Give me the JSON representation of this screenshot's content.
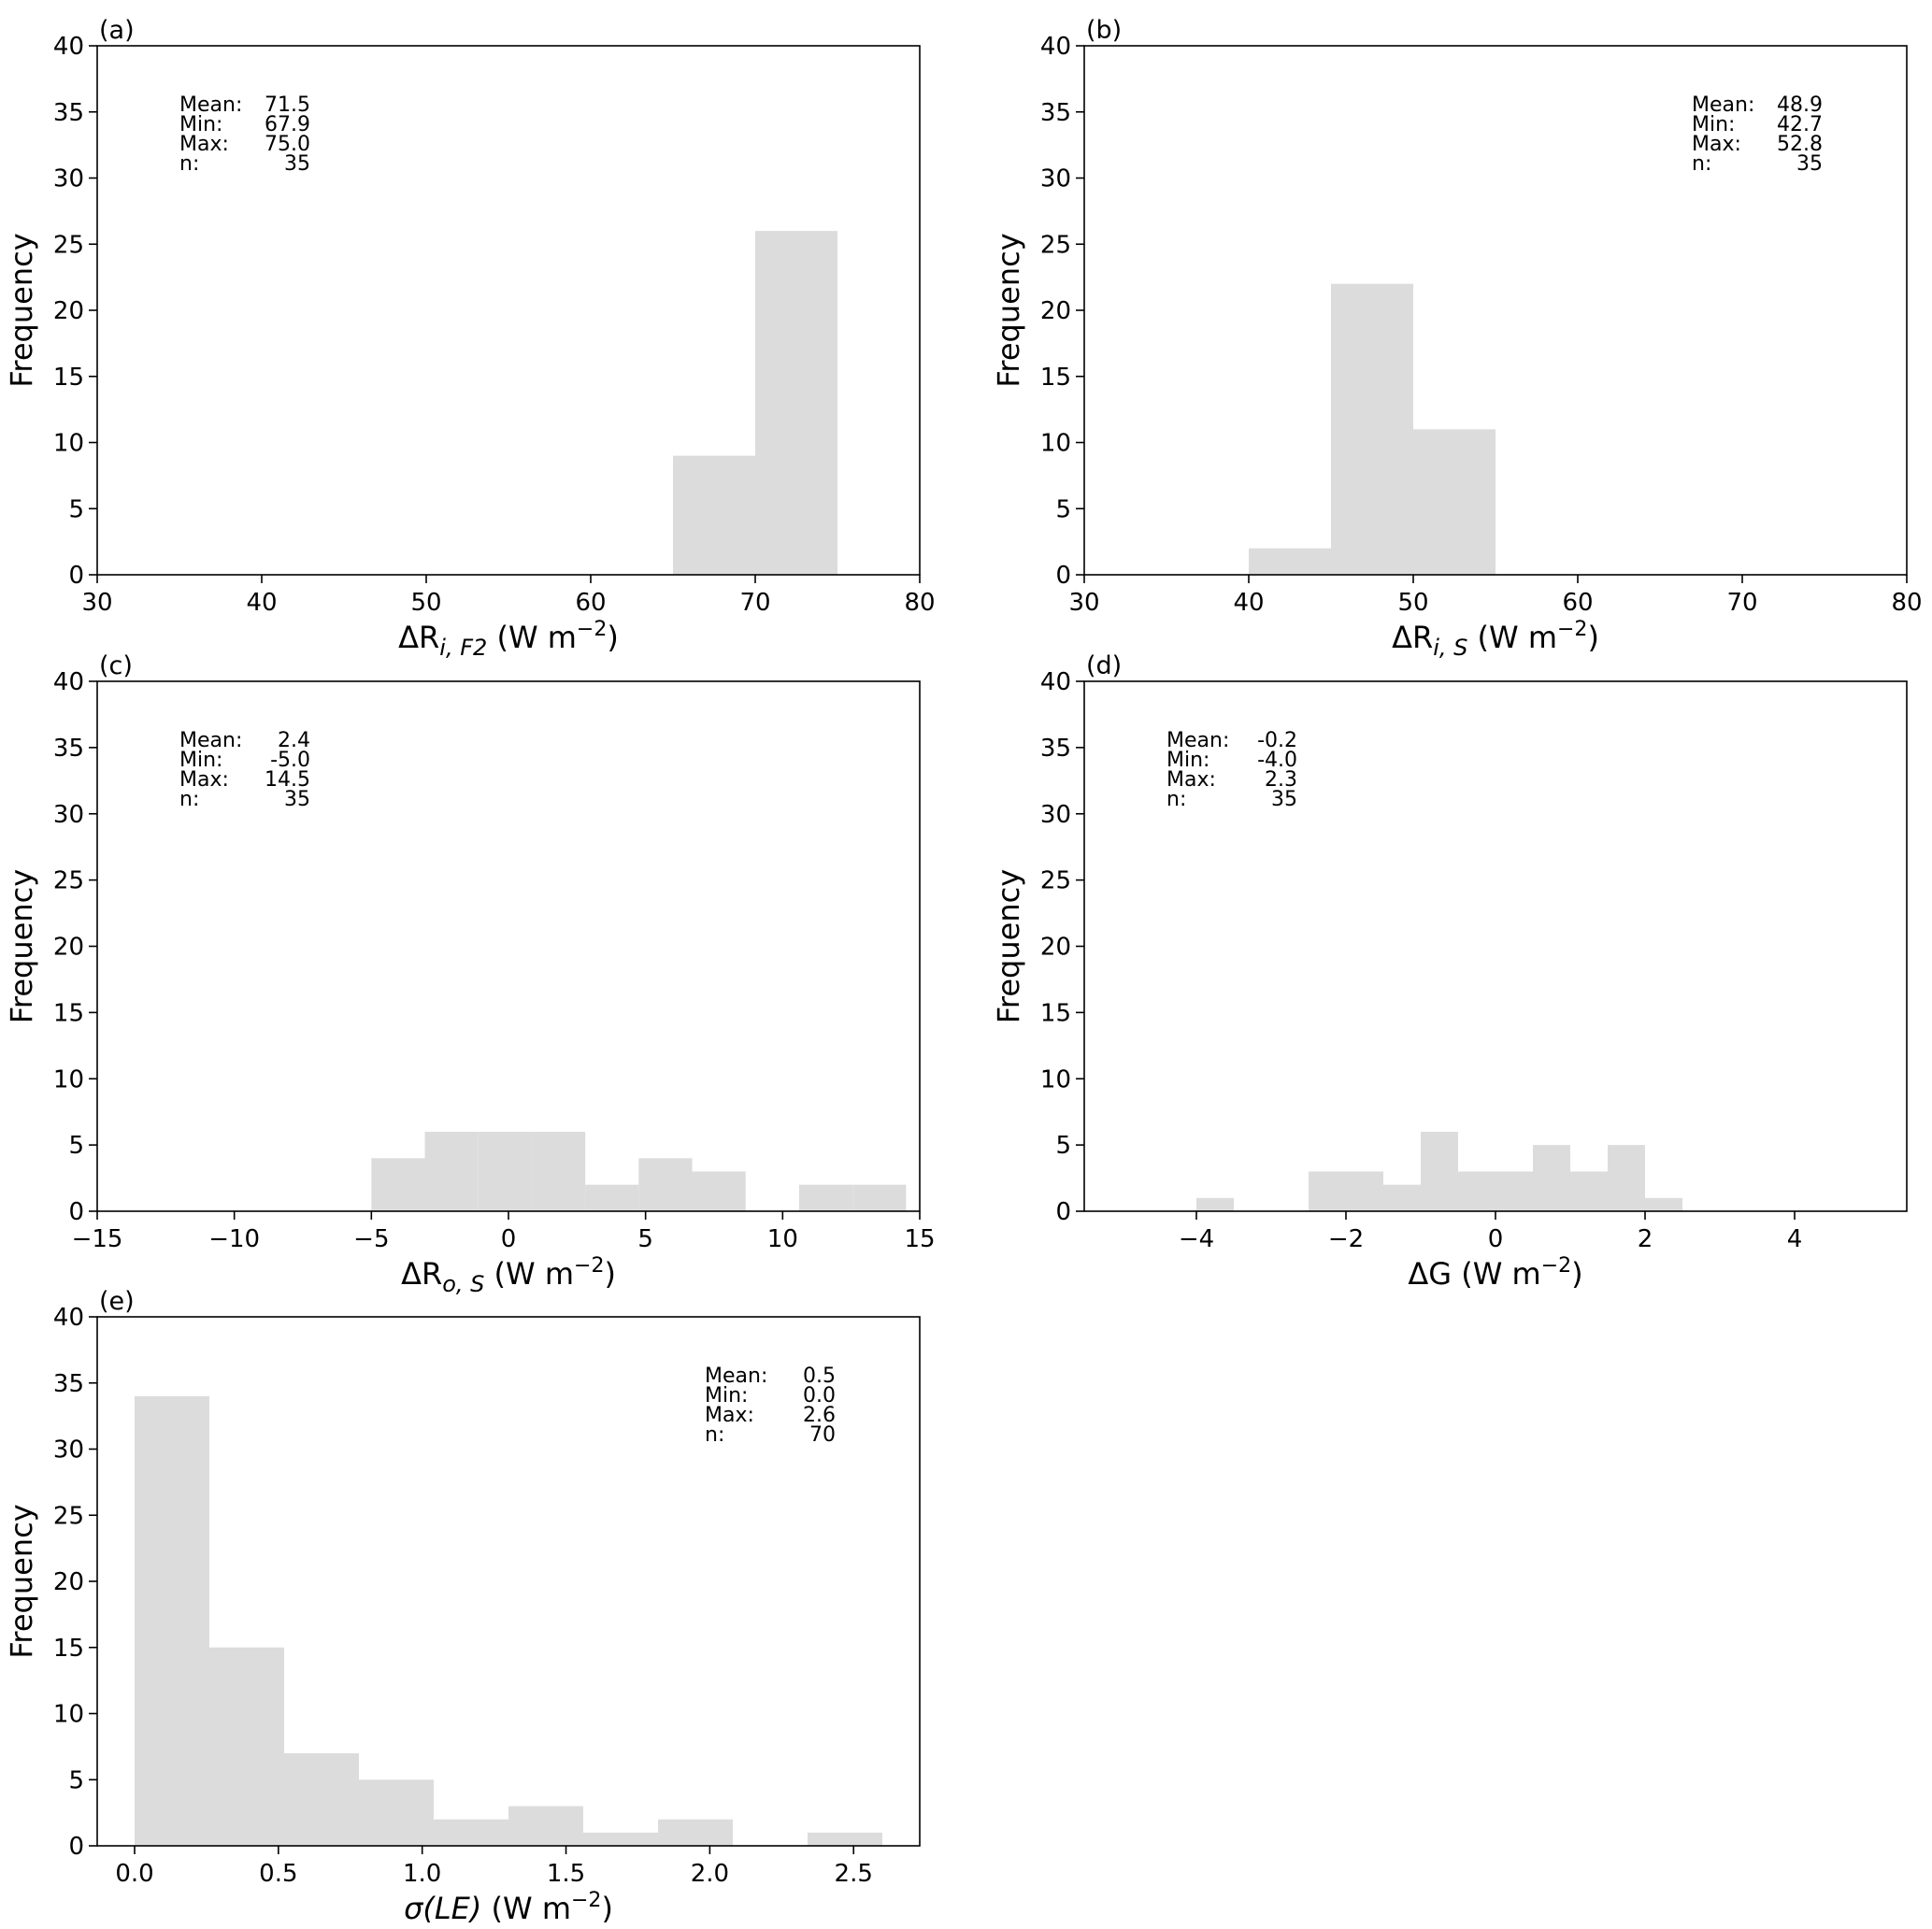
{
  "chart_data": [
    {
      "type": "bar",
      "panel_label": "(a)",
      "xlabel": {
        "prefix": "ΔR",
        "sub": "i, F2",
        "unit": " (W m",
        "sup": "−2",
        "close": ")"
      },
      "ylabel": "Frequency",
      "xlim": [
        30,
        80
      ],
      "ylim": [
        0,
        40
      ],
      "xticks": [
        30,
        40,
        50,
        60,
        70,
        80
      ],
      "xtick_labels": [
        "30",
        "40",
        "50",
        "60",
        "70",
        "80"
      ],
      "yticks": [
        0,
        5,
        10,
        15,
        20,
        25,
        30,
        35,
        40
      ],
      "ytick_labels": [
        "0",
        "5",
        "10",
        "15",
        "20",
        "25",
        "30",
        "35",
        "40"
      ],
      "bins": [
        [
          65,
          70,
          9
        ],
        [
          70,
          75,
          26
        ]
      ],
      "stats_position": "top-left",
      "stats": [
        [
          "Mean:",
          "71.5"
        ],
        [
          "Min:",
          "67.9"
        ],
        [
          "Max:",
          "75.0"
        ],
        [
          "n:",
          "35"
        ]
      ]
    },
    {
      "type": "bar",
      "panel_label": "(b)",
      "xlabel": {
        "prefix": "ΔR",
        "sub": "i, S",
        "unit": " (W m",
        "sup": "−2",
        "close": ")"
      },
      "ylabel": "Frequency",
      "xlim": [
        30,
        80
      ],
      "ylim": [
        0,
        40
      ],
      "xticks": [
        30,
        40,
        50,
        60,
        70,
        80
      ],
      "xtick_labels": [
        "30",
        "40",
        "50",
        "60",
        "70",
        "80"
      ],
      "yticks": [
        0,
        5,
        10,
        15,
        20,
        25,
        30,
        35,
        40
      ],
      "ytick_labels": [
        "0",
        "5",
        "10",
        "15",
        "20",
        "25",
        "30",
        "35",
        "40"
      ],
      "bins": [
        [
          40,
          45,
          2
        ],
        [
          45,
          50,
          22
        ],
        [
          50,
          55,
          11
        ]
      ],
      "stats_position": "top-right",
      "stats": [
        [
          "Mean:",
          "48.9"
        ],
        [
          "Min:",
          "42.7"
        ],
        [
          "Max:",
          "52.8"
        ],
        [
          "n:",
          "35"
        ]
      ]
    },
    {
      "type": "bar",
      "panel_label": "(c)",
      "xlabel": {
        "prefix": "ΔR",
        "sub": "o, S",
        "unit": " (W m",
        "sup": "−2",
        "close": ")"
      },
      "ylabel": "Frequency",
      "xlim": [
        -15,
        15
      ],
      "ylim": [
        0,
        40
      ],
      "xticks": [
        -15,
        -10,
        -5,
        0,
        5,
        10,
        15
      ],
      "xtick_labels": [
        "−15",
        "−10",
        "−5",
        "0",
        "5",
        "10",
        "15"
      ],
      "yticks": [
        0,
        5,
        10,
        15,
        20,
        25,
        30,
        35,
        40
      ],
      "ytick_labels": [
        "0",
        "5",
        "10",
        "15",
        "20",
        "25",
        "30",
        "35",
        "40"
      ],
      "bins": [
        [
          -5.0,
          -3.05,
          4
        ],
        [
          -3.05,
          -1.1,
          6
        ],
        [
          -1.1,
          0.85,
          6
        ],
        [
          0.85,
          2.8,
          6
        ],
        [
          2.8,
          4.75,
          2
        ],
        [
          4.75,
          6.7,
          4
        ],
        [
          6.7,
          8.65,
          3
        ],
        [
          8.65,
          10.6,
          0
        ],
        [
          10.6,
          12.55,
          2
        ],
        [
          12.55,
          14.5,
          2
        ]
      ],
      "stats_position": "top-left",
      "stats": [
        [
          "Mean:",
          "2.4"
        ],
        [
          "Min:",
          "-5.0"
        ],
        [
          "Max:",
          "14.5"
        ],
        [
          "n:",
          "35"
        ]
      ]
    },
    {
      "type": "bar",
      "panel_label": "(d)",
      "xlabel": {
        "prefix": "ΔG",
        "sub": "",
        "unit": " (W m",
        "sup": "−2",
        "close": ")"
      },
      "ylabel": "Frequency",
      "xlim": [
        -5.5,
        5.5
      ],
      "ylim": [
        0,
        40
      ],
      "xticks": [
        -4,
        -2,
        0,
        2,
        4
      ],
      "xtick_labels": [
        "−4",
        "−2",
        "0",
        "2",
        "4"
      ],
      "yticks": [
        0,
        5,
        10,
        15,
        20,
        25,
        30,
        35,
        40
      ],
      "ytick_labels": [
        "0",
        "5",
        "10",
        "15",
        "20",
        "25",
        "30",
        "35",
        "40"
      ],
      "bins": [
        [
          -4.0,
          -3.5,
          1
        ],
        [
          -3.5,
          -3.0,
          0
        ],
        [
          -3.0,
          -2.5,
          0
        ],
        [
          -2.5,
          -2.0,
          3
        ],
        [
          -2.0,
          -1.5,
          3
        ],
        [
          -1.5,
          -1.0,
          2
        ],
        [
          -1.0,
          -0.5,
          6
        ],
        [
          -0.5,
          0.0,
          3
        ],
        [
          0.0,
          0.5,
          3
        ],
        [
          0.5,
          1.0,
          5
        ],
        [
          1.0,
          1.5,
          3
        ],
        [
          1.5,
          2.0,
          5
        ],
        [
          2.0,
          2.5,
          1
        ]
      ],
      "stats_position": "top-left",
      "stats": [
        [
          "Mean:",
          "-0.2"
        ],
        [
          "Min:",
          "-4.0"
        ],
        [
          "Max:",
          "2.3"
        ],
        [
          "n:",
          "35"
        ]
      ]
    },
    {
      "type": "bar",
      "panel_label": "(e)",
      "xlabel": {
        "prefix": "σ(LE)",
        "sub": "",
        "unit": " (W m",
        "sup": "−2",
        "close": ")"
      },
      "ylabel": "Frequency",
      "xlim": [
        -0.13,
        2.73
      ],
      "ylim": [
        0,
        40
      ],
      "xticks": [
        0.0,
        0.5,
        1.0,
        1.5,
        2.0,
        2.5
      ],
      "xtick_labels": [
        "0.0",
        "0.5",
        "1.0",
        "1.5",
        "2.0",
        "2.5"
      ],
      "yticks": [
        0,
        5,
        10,
        15,
        20,
        25,
        30,
        35,
        40
      ],
      "ytick_labels": [
        "0",
        "5",
        "10",
        "15",
        "20",
        "25",
        "30",
        "35",
        "40"
      ],
      "bins": [
        [
          0.0,
          0.26,
          34
        ],
        [
          0.26,
          0.52,
          15
        ],
        [
          0.52,
          0.78,
          7
        ],
        [
          0.78,
          1.04,
          5
        ],
        [
          1.04,
          1.3,
          2
        ],
        [
          1.3,
          1.56,
          3
        ],
        [
          1.56,
          1.82,
          1
        ],
        [
          1.82,
          2.08,
          2
        ],
        [
          2.08,
          2.34,
          0
        ],
        [
          2.34,
          2.6,
          1
        ]
      ],
      "stats_position": "top-right",
      "stats": [
        [
          "Mean:",
          "0.5"
        ],
        [
          "Min:",
          "0.0"
        ],
        [
          "Max:",
          "2.6"
        ],
        [
          "n:",
          "70"
        ]
      ]
    }
  ]
}
